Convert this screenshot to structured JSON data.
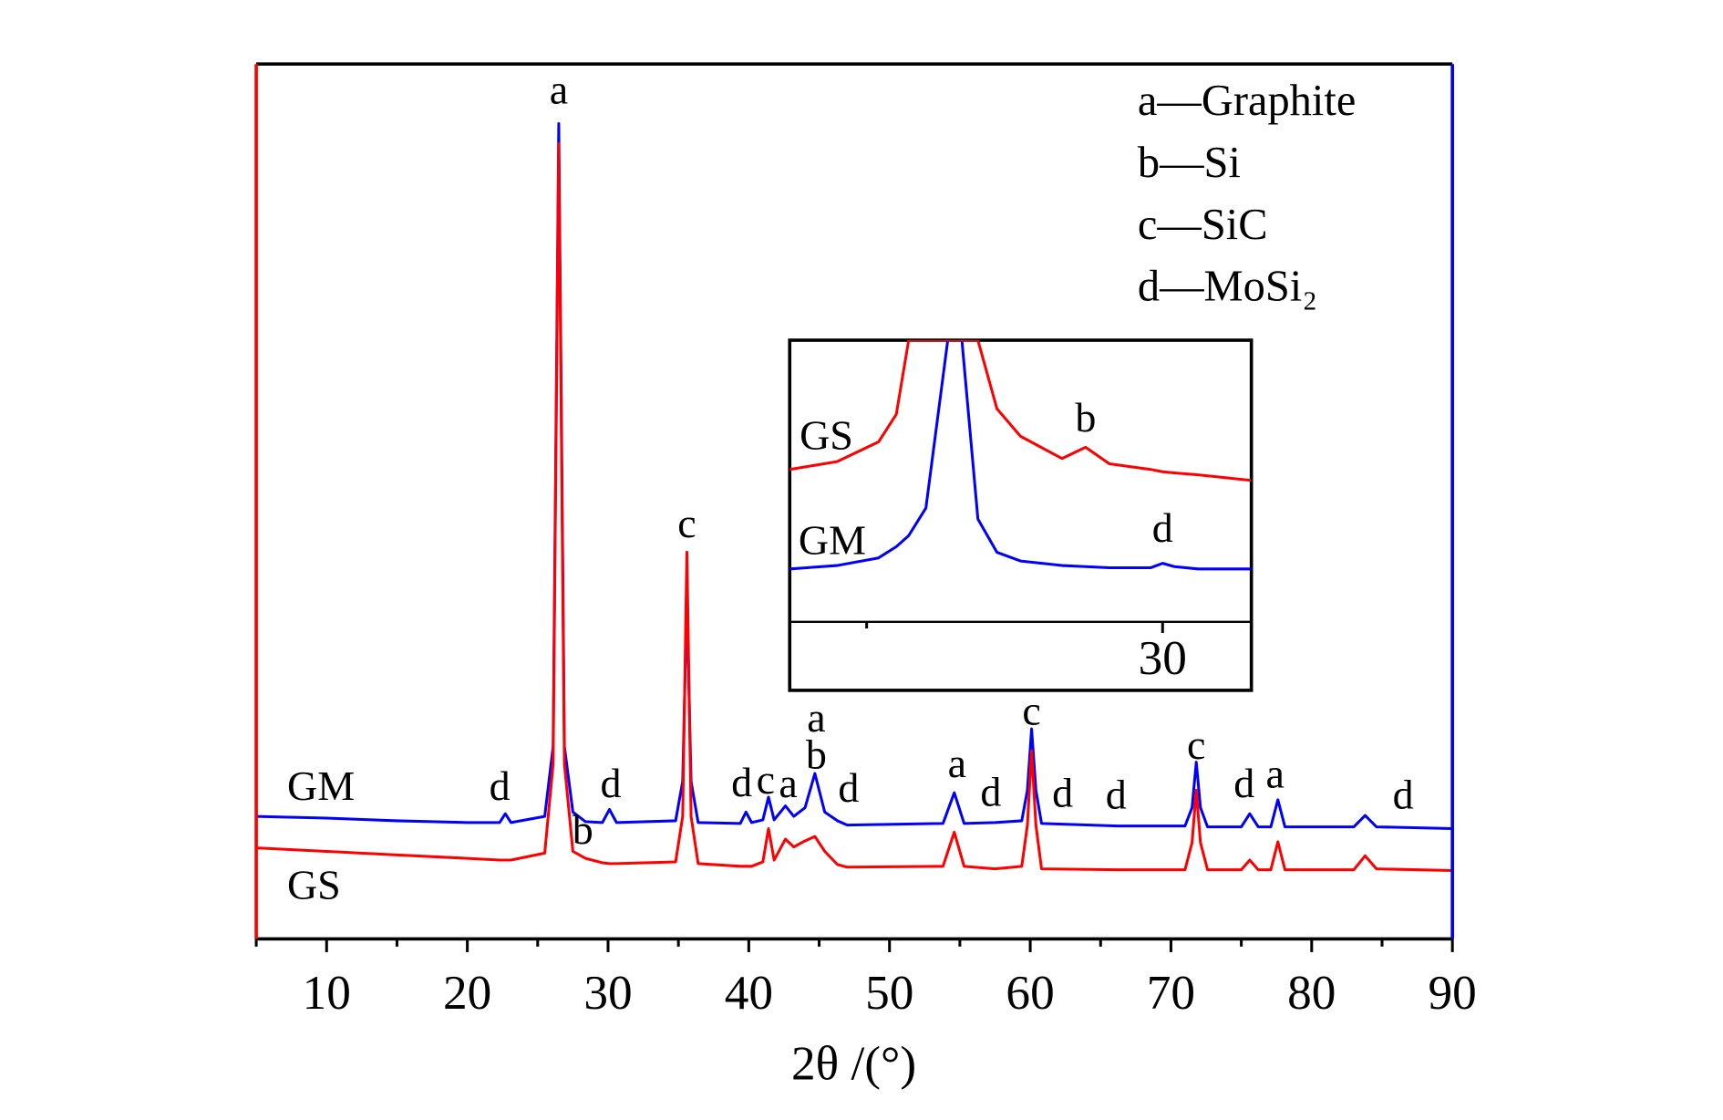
{
  "chart_data": [
    {
      "type": "line",
      "xlabel": "2θ /(°)",
      "xlim": [
        5,
        90
      ],
      "xticks": [
        10,
        20,
        30,
        40,
        50,
        60,
        70,
        80,
        90
      ],
      "xminor": [
        5,
        15,
        25,
        35,
        45,
        55,
        65,
        75,
        85
      ],
      "ylim": [
        0,
        100
      ],
      "key": [
        "a—Graphite",
        "b—Si",
        "c—SiC",
        "d—MoSi₂"
      ],
      "x": [
        5,
        10,
        15,
        20,
        22.3,
        22.7,
        23.1,
        25.5,
        26.1,
        26.5,
        26.9,
        27.5,
        28.4,
        29.6,
        30.1,
        30.6,
        34.8,
        35.3,
        35.6,
        35.9,
        36.4,
        39.4,
        39.8,
        40.2,
        41.0,
        41.4,
        41.8,
        42.6,
        43.2,
        44.0,
        44.7,
        45.4,
        46.3,
        47.0,
        53.8,
        54.6,
        55.3,
        57.5,
        59.4,
        59.8,
        60.1,
        60.4,
        60.8,
        66.2,
        71.0,
        71.5,
        71.8,
        72.1,
        72.6,
        75.0,
        75.6,
        76.2,
        77.1,
        77.6,
        78.1,
        83.0,
        83.8,
        84.6,
        90
      ],
      "series": [
        {
          "name": "GM",
          "color": "#0000ff",
          "values": [
            14,
            13.8,
            13.5,
            13.3,
            13.3,
            14.3,
            13.3,
            14,
            22,
            93.2,
            22,
            14.5,
            13.4,
            13.3,
            14.8,
            13.3,
            13.5,
            18,
            39,
            18,
            13.3,
            13.2,
            14.5,
            13.3,
            13.6,
            16.2,
            13.6,
            15.2,
            14,
            15,
            18.9,
            14.5,
            13.5,
            13,
            13.2,
            16.7,
            13.2,
            13.3,
            13.5,
            17,
            24,
            17,
            13.2,
            12.9,
            12.9,
            15,
            20.2,
            15,
            12.8,
            12.8,
            14.3,
            12.8,
            12.8,
            15.9,
            12.8,
            12.8,
            14.1,
            12.8,
            12.6
          ]
        },
        {
          "name": "GS",
          "color": "#ff0000",
          "values": [
            10.4,
            10,
            9.6,
            9.2,
            9,
            9,
            9,
            9.8,
            20,
            90.9,
            20,
            10,
            9.2,
            8.7,
            8.6,
            8.6,
            8.8,
            14,
            44.2,
            14,
            8.6,
            8.3,
            8.3,
            8.3,
            8.8,
            12.6,
            9,
            11.4,
            10.5,
            11.2,
            11.7,
            10,
            8.5,
            8.2,
            8.3,
            12.2,
            8.3,
            8,
            8.3,
            13,
            21.5,
            13,
            8,
            7.9,
            7.9,
            11,
            17,
            11,
            7.9,
            7.9,
            9,
            7.9,
            7.9,
            11.1,
            7.9,
            7.9,
            9.5,
            8,
            7.8
          ]
        }
      ],
      "annotations": [
        {
          "text": "a",
          "x": 26.5,
          "y": 96.6
        },
        {
          "text": "c",
          "x": 35.6,
          "y": 47
        },
        {
          "text": "d",
          "x": 22.3,
          "y": 17
        },
        {
          "text": "b",
          "x": 28.2,
          "y": 12
        },
        {
          "text": "d",
          "x": 30.2,
          "y": 17.3
        },
        {
          "text": "d",
          "x": 39.5,
          "y": 17.4
        },
        {
          "text": "c",
          "x": 41.2,
          "y": 17.7
        },
        {
          "text": "a",
          "x": 42.8,
          "y": 17.3
        },
        {
          "text": "a",
          "x": 44.8,
          "y": 24.8
        },
        {
          "text": "b",
          "x": 44.8,
          "y": 20.6
        },
        {
          "text": "d",
          "x": 47.1,
          "y": 16.8
        },
        {
          "text": "a",
          "x": 54.8,
          "y": 19.6
        },
        {
          "text": "d",
          "x": 57.2,
          "y": 16.3
        },
        {
          "text": "c",
          "x": 60.1,
          "y": 25.6
        },
        {
          "text": "d",
          "x": 62.3,
          "y": 16.2
        },
        {
          "text": "d",
          "x": 66.1,
          "y": 16
        },
        {
          "text": "c",
          "x": 71.8,
          "y": 21.7
        },
        {
          "text": "d",
          "x": 75.2,
          "y": 17.3
        },
        {
          "text": "a",
          "x": 77.4,
          "y": 18.4
        },
        {
          "text": "d",
          "x": 86.5,
          "y": 16
        },
        {
          "text": "GM",
          "x": 9.6,
          "y": 17
        },
        {
          "text": "GS",
          "x": 9.1,
          "y": 5.7
        }
      ]
    },
    {
      "type": "line",
      "xlim": [
        23.7,
        31.5
      ],
      "xticks": [
        30
      ],
      "xminor": [
        25
      ],
      "ylim": [
        0,
        100
      ],
      "x": [
        23.7,
        24.5,
        25.2,
        25.5,
        25.71,
        26.0,
        26.37,
        26.5,
        26.61,
        26.88,
        27.2,
        27.6,
        28.3,
        28.7,
        29.1,
        29.8,
        30.0,
        30.2,
        30.6,
        31.5
      ],
      "series": [
        {
          "name": "GM",
          "color": "#0000ff",
          "values": [
            18.8,
            20,
            22.7,
            26.7,
            30.6,
            40.4,
            100,
            100,
            100,
            36.5,
            24.7,
            21.6,
            20,
            19.6,
            19.2,
            19.2,
            20.8,
            19.6,
            18.8,
            18.8
          ]
        },
        {
          "name": "GS",
          "color": "#ff0000",
          "values": [
            54.1,
            56.9,
            63.9,
            73.7,
            100,
            100,
            100,
            100,
            100,
            100,
            75.7,
            65.9,
            58,
            62,
            56.1,
            54.1,
            53.3,
            52.9,
            52.2,
            50.2
          ]
        }
      ],
      "annotations": [
        {
          "text": "GS",
          "x": 24.32,
          "y": 64.7
        },
        {
          "text": "GM",
          "x": 24.42,
          "y": 27.5
        },
        {
          "text": "b",
          "x": 28.7,
          "y": 71
        },
        {
          "text": "d",
          "x": 30.0,
          "y": 31.8
        }
      ]
    }
  ]
}
